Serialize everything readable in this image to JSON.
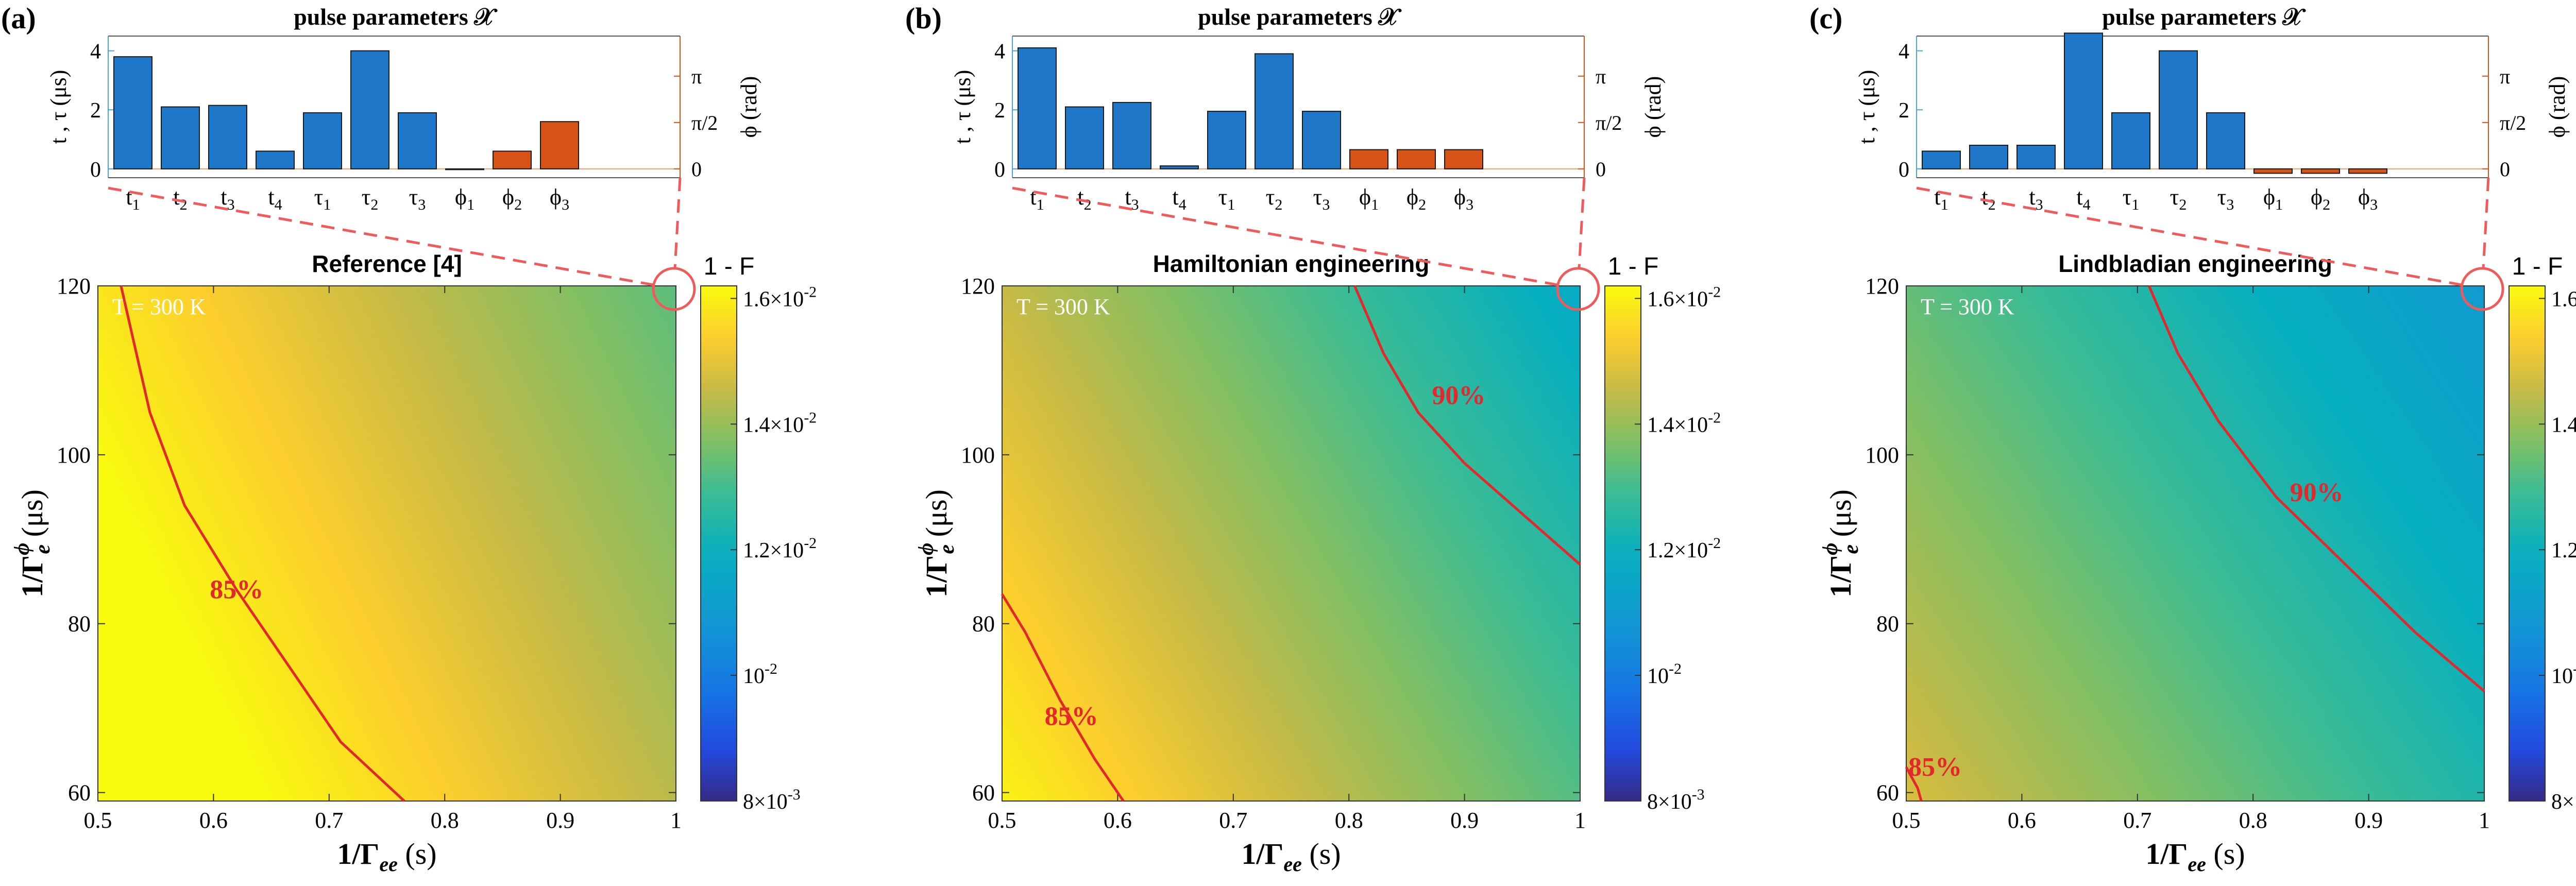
{
  "figure": {
    "colors": {
      "bar_time": "#1f77c9",
      "bar_phase": "#d95319",
      "contour": "#e3272a",
      "zoom_marker": "#f05a5a",
      "axis_right": "#d95319",
      "axis_left": "#4aa3df"
    },
    "colorbar": {
      "label": "1 - F",
      "ticks": [
        {
          "value": 0.016,
          "label": "1.6×10",
          "exp": "-2"
        },
        {
          "value": 0.014,
          "label": "1.4×10",
          "exp": "-2"
        },
        {
          "value": 0.012,
          "label": "1.2×10",
          "exp": "-2"
        },
        {
          "value": 0.01,
          "label": "10",
          "exp": "-2"
        },
        {
          "value": 0.008,
          "label": "8×10",
          "exp": "-3"
        }
      ],
      "range": [
        0.008,
        0.0162
      ]
    }
  },
  "chart_data": [
    {
      "panel": "(a)",
      "bar_chart": {
        "type": "bar",
        "title": "pulse parameters 𝒳",
        "ylabel_left": "t , τ (μs)",
        "ylabel_right": "ϕ (rad)",
        "left_ticks": [
          "4",
          "2",
          "0"
        ],
        "right_ticks": [
          "π",
          "π/2",
          "0"
        ],
        "ylim": [
          -0.3,
          4.5
        ],
        "categories": [
          "t1",
          "t2",
          "t3",
          "t4",
          "τ1",
          "τ2",
          "τ3",
          "ϕ1",
          "ϕ2",
          "ϕ3"
        ],
        "category_labels": [
          {
            "base": "t",
            "sub": "1"
          },
          {
            "base": "t",
            "sub": "2"
          },
          {
            "base": "t",
            "sub": "3"
          },
          {
            "base": "t",
            "sub": "4"
          },
          {
            "base": "τ",
            "sub": "1"
          },
          {
            "base": "τ",
            "sub": "2"
          },
          {
            "base": "τ",
            "sub": "3"
          },
          {
            "base": "ϕ",
            "sub": "1"
          },
          {
            "base": "ϕ",
            "sub": "2"
          },
          {
            "base": "ϕ",
            "sub": "3"
          }
        ],
        "values": [
          3.8,
          2.1,
          2.15,
          0.6,
          1.9,
          4.0,
          1.9,
          0.0,
          0.6,
          1.6
        ],
        "series_kind": [
          "time",
          "time",
          "time",
          "time",
          "time",
          "time",
          "time",
          "phase",
          "phase",
          "phase"
        ]
      },
      "heatmap": {
        "type": "heatmap",
        "title": "Reference [4]",
        "annotation": "T = 300 K",
        "xlabel": "1/Γ",
        "xlabel_sub": "ee",
        "xlabel_unit": " (s)",
        "ylabel": "1/Γ",
        "ylabel_sub": "e",
        "ylabel_sup": "ϕ",
        "ylabel_unit": " (μs)",
        "xlim": [
          0.5,
          1.0
        ],
        "ylim": [
          59,
          120
        ],
        "xticks": [
          "0.5",
          "0.6",
          "0.7",
          "0.8",
          "0.9",
          "1"
        ],
        "yticks": [
          "60",
          "80",
          "100",
          "120"
        ],
        "model": {
          "a": 0.01692,
          "b": 0.00505,
          "c": 1.8e-05
        },
        "contours": [
          {
            "label": "85%",
            "label_pos": [
              0.62,
              83
            ],
            "points": [
              [
                0.52,
                120
              ],
              [
                0.53,
                114
              ],
              [
                0.545,
                105
              ],
              [
                0.575,
                94
              ],
              [
                0.62,
                84
              ],
              [
                0.665,
                75
              ],
              [
                0.71,
                66
              ],
              [
                0.765,
                59
              ]
            ]
          }
        ]
      }
    },
    {
      "panel": "(b)",
      "bar_chart": {
        "type": "bar",
        "title": "pulse parameters 𝒳",
        "ylabel_left": "t , τ (μs)",
        "ylabel_right": "ϕ (rad)",
        "left_ticks": [
          "4",
          "2",
          "0"
        ],
        "right_ticks": [
          "π",
          "π/2",
          "0"
        ],
        "ylim": [
          -0.3,
          4.5
        ],
        "categories": [
          "t1",
          "t2",
          "t3",
          "t4",
          "τ1",
          "τ2",
          "τ3",
          "ϕ1",
          "ϕ2",
          "ϕ3"
        ],
        "category_labels": [
          {
            "base": "t",
            "sub": "1"
          },
          {
            "base": "t",
            "sub": "2"
          },
          {
            "base": "t",
            "sub": "3"
          },
          {
            "base": "t",
            "sub": "4"
          },
          {
            "base": "τ",
            "sub": "1"
          },
          {
            "base": "τ",
            "sub": "2"
          },
          {
            "base": "τ",
            "sub": "3"
          },
          {
            "base": "ϕ",
            "sub": "1"
          },
          {
            "base": "ϕ",
            "sub": "2"
          },
          {
            "base": "ϕ",
            "sub": "3"
          }
        ],
        "values": [
          4.1,
          2.1,
          2.25,
          0.1,
          1.95,
          3.9,
          1.95,
          0.65,
          0.65,
          0.65
        ],
        "series_kind": [
          "time",
          "time",
          "time",
          "time",
          "time",
          "time",
          "time",
          "phase",
          "phase",
          "phase"
        ]
      },
      "heatmap": {
        "type": "heatmap",
        "title": "Hamiltonian engineering",
        "annotation": "T = 300 K",
        "xlabel": "1/Γ",
        "xlabel_sub": "ee",
        "xlabel_unit": " (s)",
        "ylabel": "1/Γ",
        "ylabel_sub": "e",
        "ylabel_sup": "ϕ",
        "ylabel_unit": " (μs)",
        "xlim": [
          0.5,
          1.0
        ],
        "ylim": [
          59,
          120
        ],
        "xticks": [
          "0.5",
          "0.6",
          "0.7",
          "0.8",
          "0.9",
          "1"
        ],
        "yticks": [
          "60",
          "80",
          "100",
          "120"
        ],
        "model": {
          "a": 0.01605,
          "b": 0.0057,
          "c": 2.45e-05
        },
        "contours": [
          {
            "label": "85%",
            "label_pos": [
              0.56,
              68
            ],
            "points": [
              [
                0.5,
                83.5
              ],
              [
                0.52,
                79
              ],
              [
                0.55,
                71
              ],
              [
                0.58,
                64
              ],
              [
                0.605,
                59
              ]
            ]
          },
          {
            "label": "90%",
            "label_pos": [
              0.895,
              106
            ],
            "points": [
              [
                0.805,
                120
              ],
              [
                0.83,
                112
              ],
              [
                0.86,
                105
              ],
              [
                0.9,
                99
              ],
              [
                0.95,
                93
              ],
              [
                1.0,
                87
              ]
            ]
          }
        ]
      }
    },
    {
      "panel": "(c)",
      "bar_chart": {
        "type": "bar",
        "title": "pulse parameters 𝒳",
        "ylabel_left": "t , τ (μs)",
        "ylabel_right": "ϕ (rad)",
        "left_ticks": [
          "4",
          "2",
          "0"
        ],
        "right_ticks": [
          "π",
          "π/2",
          "0"
        ],
        "ylim": [
          -0.3,
          4.5
        ],
        "categories": [
          "t1",
          "t2",
          "t3",
          "t4",
          "τ1",
          "τ2",
          "τ3",
          "ϕ1",
          "ϕ2",
          "ϕ3"
        ],
        "category_labels": [
          {
            "base": "t",
            "sub": "1"
          },
          {
            "base": "t",
            "sub": "2"
          },
          {
            "base": "t",
            "sub": "3"
          },
          {
            "base": "t",
            "sub": "4"
          },
          {
            "base": "τ",
            "sub": "1"
          },
          {
            "base": "τ",
            "sub": "2"
          },
          {
            "base": "τ",
            "sub": "3"
          },
          {
            "base": "ϕ",
            "sub": "1"
          },
          {
            "base": "ϕ",
            "sub": "2"
          },
          {
            "base": "ϕ",
            "sub": "3"
          }
        ],
        "values": [
          0.6,
          0.8,
          0.8,
          4.6,
          1.9,
          4.0,
          1.9,
          -0.15,
          -0.15,
          -0.15
        ],
        "series_kind": [
          "time",
          "time",
          "time",
          "time",
          "time",
          "time",
          "time",
          "phase",
          "phase",
          "phase"
        ]
      },
      "heatmap": {
        "type": "heatmap",
        "title": "Lindbladian engineering",
        "annotation": "T = 300 K",
        "xlabel": "1/Γ",
        "xlabel_sub": "ee",
        "xlabel_unit": " (s)",
        "ylabel": "1/Γ",
        "ylabel_sub": "e",
        "ylabel_sup": "ϕ",
        "ylabel_unit": " (μs)",
        "xlim": [
          0.5,
          1.0
        ],
        "ylim": [
          59,
          120
        ],
        "xticks": [
          "0.5",
          "0.6",
          "0.7",
          "0.8",
          "0.9",
          "1"
        ],
        "yticks": [
          "60",
          "80",
          "100",
          "120"
        ],
        "model": {
          "a": 0.0148,
          "b": 0.0048,
          "c": 2.3e-05
        },
        "contours": [
          {
            "label": "85%",
            "label_pos": [
              0.525,
              62
            ],
            "points": [
              [
                0.5,
                63
              ],
              [
                0.51,
                60.5
              ],
              [
                0.513,
                59
              ]
            ]
          },
          {
            "label": "90%",
            "label_pos": [
              0.855,
              94.5
            ],
            "points": [
              [
                0.71,
                120
              ],
              [
                0.735,
                112
              ],
              [
                0.77,
                104
              ],
              [
                0.82,
                95
              ],
              [
                0.88,
                87
              ],
              [
                0.94,
                79
              ],
              [
                1.0,
                72
              ]
            ]
          }
        ]
      }
    }
  ]
}
